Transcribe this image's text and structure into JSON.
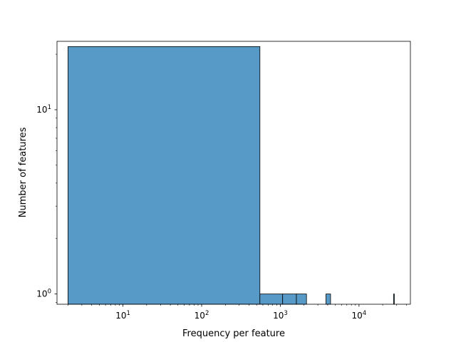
{
  "chart_data": {
    "type": "bar",
    "title": "",
    "xlabel": "Frequency per feature",
    "ylabel": "Number of features",
    "x_scale": "log",
    "y_scale": "log",
    "xlim": [
      1.45,
      45000
    ],
    "ylim": [
      0.88,
      23.5
    ],
    "grid": false,
    "legend": "none",
    "x_ticks": [
      {
        "value": 10,
        "base": "10",
        "exp": "1"
      },
      {
        "value": 100,
        "base": "10",
        "exp": "2"
      },
      {
        "value": 1000,
        "base": "10",
        "exp": "3"
      },
      {
        "value": 10000,
        "base": "10",
        "exp": "4"
      }
    ],
    "y_ticks": [
      {
        "value": 1,
        "base": "10",
        "exp": "0"
      },
      {
        "value": 10,
        "base": "10",
        "exp": "1"
      }
    ],
    "bins": [
      {
        "x0": 2.0,
        "x1": 550,
        "count": 22
      },
      {
        "x0": 550,
        "x1": 1070,
        "count": 1
      },
      {
        "x0": 1070,
        "x1": 1600,
        "count": 1
      },
      {
        "x0": 1600,
        "x1": 2150,
        "count": 1
      },
      {
        "x0": 3800,
        "x1": 4350,
        "count": 1
      },
      {
        "x0": 27500,
        "x1": 28100,
        "count": 1
      }
    ],
    "colors": {
      "bar_fill": "#5799c7",
      "bar_edge": "#000000"
    }
  }
}
